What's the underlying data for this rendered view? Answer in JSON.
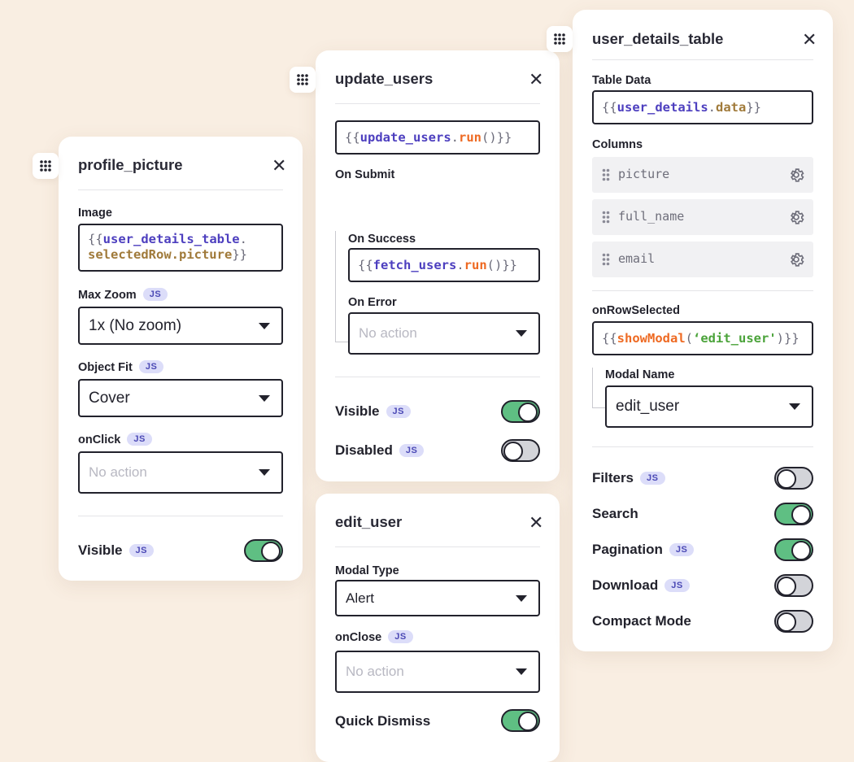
{
  "profile_picture": {
    "title": "profile_picture",
    "image_label": "Image",
    "image_code": {
      "open": "{{",
      "var": "user_details_table",
      "dot": ".",
      "prop": "selectedRow.picture",
      "close": "}}"
    },
    "max_zoom_label": "Max Zoom",
    "max_zoom_value": "1x (No zoom)",
    "object_fit_label": "Object Fit",
    "object_fit_value": "Cover",
    "onclick_label": "onClick",
    "onclick_placeholder": "No action",
    "visible_label": "Visible",
    "visible_on": true
  },
  "update_users": {
    "title": "update_users",
    "code": {
      "open": "{{",
      "var": "update_users",
      "dot": ".",
      "fn": "run",
      "tail": "()",
      "close": "}}"
    },
    "on_submit_label": "On Submit",
    "on_success_label": "On Success",
    "on_success_code": {
      "open": "{{",
      "var": "fetch_users",
      "dot": ".",
      "fn": "run",
      "tail": "()",
      "close": "}}"
    },
    "on_error_label": "On Error",
    "on_error_placeholder": "No action",
    "visible_label": "Visible",
    "visible_on": true,
    "disabled_label": "Disabled",
    "disabled_on": false
  },
  "edit_user": {
    "title": "edit_user",
    "modal_type_label": "Modal Type",
    "modal_type_value": "Alert",
    "onclose_label": "onClose",
    "onclose_placeholder": "No action",
    "quick_dismiss_label": "Quick Dismiss",
    "quick_dismiss_on": true
  },
  "user_details_table": {
    "title": "user_details_table",
    "table_data_label": "Table Data",
    "table_data_code": {
      "open": "{{",
      "var": "user_details",
      "dot": ".",
      "prop": "data",
      "close": "}}"
    },
    "columns_label": "Columns",
    "columns": [
      "picture",
      "full_name",
      "email"
    ],
    "on_row_selected_label": "onRowSelected",
    "on_row_selected_code": {
      "open": "{{",
      "fn": "showModal",
      "paren_open": "(",
      "str": "‘edit_user'",
      "paren_close": ")",
      "close": "}}"
    },
    "modal_name_label": "Modal Name",
    "modal_name_value": "edit_user",
    "filters_label": "Filters",
    "filters_on": false,
    "search_label": "Search",
    "search_on": true,
    "pagination_label": "Pagination",
    "pagination_on": true,
    "download_label": "Download",
    "download_on": false,
    "compact_label": "Compact Mode",
    "compact_on": false
  },
  "js_badge": "JS",
  "close_glyph": "✕"
}
